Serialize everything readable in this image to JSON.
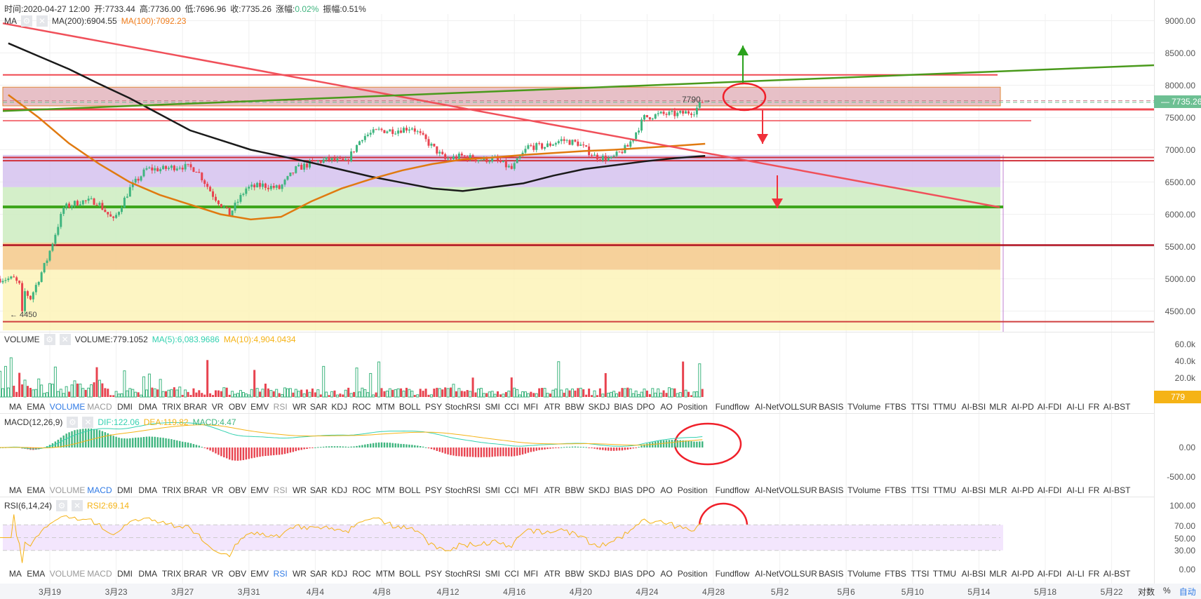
{
  "header": {
    "time_label": "时间:",
    "time": "2020-04-27 12:00",
    "open_label": "开:",
    "open": "7733.44",
    "high_label": "高:",
    "high": "7736.00",
    "low_label": "低:",
    "low": "7696.96",
    "close_label": "收:",
    "close": "7735.26",
    "change_label": "涨幅:",
    "change": "0.02%",
    "amp_label": "振幅:",
    "amp": "0.51%"
  },
  "ma_legend": {
    "name": "MA",
    "ma200": "MA(200):6904.55",
    "ma100": "MA(100):7092.23"
  },
  "volume_legend": {
    "name": "VOLUME",
    "value": "VOLUME:779.1052",
    "ma5": "MA(5):6,083.9686",
    "ma10": "MA(10):4,904.0434"
  },
  "macd_legend": {
    "name": "MACD(12,26,9)",
    "dif": "DIF:122.06",
    "dea": "DEA:119.82",
    "macd": "MACD:4.47"
  },
  "rsi_legend": {
    "name": "RSI(6,14,24)",
    "rsi2": "RSI2:69.14"
  },
  "price_axis": [
    "9000.00",
    "8500.00",
    "8000.00",
    "7500.00",
    "7000.00",
    "6500.00",
    "6000.00",
    "5500.00",
    "5000.00",
    "4500.00"
  ],
  "volume_axis": [
    "60.0k",
    "40.0k",
    "20.0k"
  ],
  "macd_axis": [
    "0.00",
    "-500.00"
  ],
  "rsi_axis": [
    "100.00",
    "70.00",
    "50.00",
    "30.00",
    "0.00"
  ],
  "current_price": "7735.26",
  "current_volume": "779",
  "annotations": {
    "high_mark": "7790",
    "low_mark": "4450"
  },
  "x_axis": [
    "3月19",
    "3月23",
    "3月27",
    "3月31",
    "4月4",
    "4月8",
    "4月12",
    "4月16",
    "4月20",
    "4月24",
    "4月28",
    "5月2",
    "5月6",
    "5月10",
    "5月14",
    "5月18",
    "5月22"
  ],
  "scale_controls": {
    "log": "对数",
    "percent": "%",
    "auto": "自动"
  },
  "indicator_tabs": [
    "MA",
    "EMA",
    "VOLUME",
    "MACD",
    "DMI",
    "DMA",
    "TRIX",
    "BRAR",
    "VR",
    "OBV",
    "EMV",
    "RSI",
    "WR",
    "SAR",
    "KDJ",
    "ROC",
    "MTM",
    "BOLL",
    "PSY",
    "StochRSI",
    "SMI",
    "CCI",
    "MFI",
    "ATR",
    "BBW",
    "SKDJ",
    "BIAS",
    "DPO",
    "AO",
    "Position",
    "Fundflow",
    "AI-NetVOL",
    "LSUR",
    "BASIS",
    "TVolume",
    "FTBS",
    "TTSI",
    "TTMU",
    "AI-BSI",
    "MLR",
    "AI-PD",
    "AI-FDI",
    "AI-LI",
    "FR",
    "AI-BST"
  ],
  "active_tabs": {
    "row1": "VOLUME",
    "row2": "MACD",
    "row3": "RSI"
  },
  "colors": {
    "up": "#3fb57f",
    "down": "#e8434f",
    "ma200": "#1a1a1a",
    "ma100": "#e07a10",
    "dif": "#33d1b0",
    "dea": "#f5b316",
    "accent": "#2f7ae5"
  },
  "chart_data": {
    "type": "candlestick",
    "dates": [
      "3/16",
      "3/17",
      "3/18",
      "3/19",
      "3/20",
      "3/21",
      "3/22",
      "3/23",
      "3/24",
      "3/25",
      "3/26",
      "3/27",
      "3/28",
      "3/29",
      "3/30",
      "3/31",
      "4/1",
      "4/2",
      "4/3",
      "4/4",
      "4/5",
      "4/6",
      "4/7",
      "4/8",
      "4/9",
      "4/10",
      "4/11",
      "4/12",
      "4/13",
      "4/14",
      "4/15",
      "4/16",
      "4/17",
      "4/18",
      "4/19",
      "4/20",
      "4/21",
      "4/22",
      "4/23",
      "4/24",
      "4/25",
      "4/26",
      "4/27"
    ],
    "close": [
      5000,
      4700,
      5300,
      6100,
      6200,
      6200,
      5900,
      6400,
      6700,
      6700,
      6750,
      6700,
      6300,
      6000,
      6400,
      6450,
      6400,
      6700,
      6800,
      6850,
      6800,
      7200,
      7300,
      7300,
      7350,
      7100,
      6850,
      6900,
      6850,
      6850,
      6700,
      7050,
      7050,
      7150,
      7100,
      6900,
      6850,
      7050,
      7500,
      7550,
      7550,
      7600,
      7735.26
    ],
    "ma200": [
      8650,
      8450,
      8250,
      8020,
      7800,
      7550,
      7300,
      7150,
      7000,
      6900,
      6800,
      6690,
      6580,
      6490,
      6400,
      6360,
      6420,
      6480,
      6600,
      6700,
      6760,
      6820,
      6870,
      6904.55
    ],
    "ma100": [
      7850,
      7500,
      7100,
      6780,
      6500,
      6300,
      6150,
      6000,
      5920,
      5960,
      6200,
      6400,
      6550,
      6680,
      6780,
      6850,
      6880,
      6920,
      6950,
      6980,
      7000,
      7030,
      7060,
      7092.23
    ],
    "ylim": [
      4200,
      9300
    ],
    "zones": [
      {
        "from": 7680,
        "to": 7970,
        "color": "#e3b5bd"
      },
      {
        "from": 6420,
        "to": 6920,
        "color": "#d5c2ef"
      },
      {
        "from": 5560,
        "to": 6420,
        "color": "#cdecc0"
      },
      {
        "from": 5140,
        "to": 5560,
        "color": "#f4c98a"
      },
      {
        "from": 4200,
        "to": 5140,
        "color": "#fdf3b9"
      }
    ],
    "levels": [
      {
        "price": 8160,
        "color": "#f04850"
      },
      {
        "price": 7625,
        "color": "#f04850"
      },
      {
        "price": 7450,
        "color": "#f04850"
      },
      {
        "price": 6880,
        "color": "#d0303a"
      },
      {
        "price": 6830,
        "color": "#d0303a"
      },
      {
        "price": 6114,
        "color": "#3ea61c"
      },
      {
        "price": 5522,
        "color": "#b01020"
      },
      {
        "price": 4336,
        "color": "#d04040"
      }
    ]
  }
}
